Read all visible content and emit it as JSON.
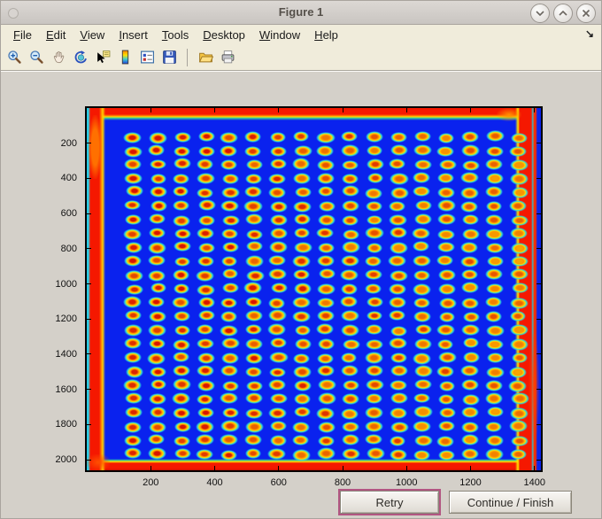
{
  "window": {
    "title": "Figure 1",
    "controls": [
      "minimize",
      "maximize",
      "close"
    ]
  },
  "menubar": {
    "items": [
      "File",
      "Edit",
      "View",
      "Insert",
      "Tools",
      "Desktop",
      "Window",
      "Help"
    ],
    "dock_arrow": "↘"
  },
  "toolbar": {
    "tools": [
      "zoom-in",
      "zoom-out",
      "pan",
      "rotate-3d",
      "data-cursor",
      "insert-colorbar",
      "insert-legend",
      "save-figure",
      "open-file",
      "print-figure"
    ]
  },
  "plot": {
    "x_ticks": [
      200,
      400,
      600,
      800,
      1000,
      1200,
      1400
    ],
    "y_ticks": [
      200,
      400,
      600,
      800,
      1000,
      1200,
      1400,
      1600,
      1800,
      2000
    ],
    "x_range": [
      0,
      1420
    ],
    "y_range": [
      0,
      2060
    ],
    "grid": {
      "cols": 17,
      "rows": 24,
      "x_start": 146,
      "x_step": 75.3,
      "y_start": 165,
      "y_step": 78.4,
      "spot_w_units": 55,
      "spot_h_units": 64
    },
    "colors": {
      "background_blue": "#0a22ee",
      "halo_cyan": "#2ed8d8",
      "body_yellow": "#ffdc00",
      "ring_orange": "#ff9400",
      "center_red": "#d81600",
      "center_orange": "#ffc400",
      "band_red": "#f51800"
    }
  },
  "chart_data": {
    "type": "heatmap",
    "title": "",
    "xlabel": "",
    "ylabel": "",
    "x_ticks": [
      200,
      400,
      600,
      800,
      1000,
      1200,
      1400
    ],
    "y_ticks": [
      200,
      400,
      600,
      800,
      1000,
      1200,
      1400,
      1600,
      1800,
      2000
    ],
    "x_range": [
      0,
      1420
    ],
    "y_range": [
      0,
      2060
    ],
    "grid": {
      "cols": 17,
      "rows": 24
    },
    "colormap": "jet",
    "legend": "none",
    "description": "Pseudocolor (jet colormap) scan of a spotted array: deep blue background, ~17 x 24 grid of elliptical spots with red/orange centers, yellow bodies and cyan halos; saturated red bands run along all four edges of the imaged plate; spots on the right side are more yellow (lower intensity centers)."
  },
  "buttons": {
    "retry_label": "Retry",
    "continue_label": "Continue / Finish"
  }
}
